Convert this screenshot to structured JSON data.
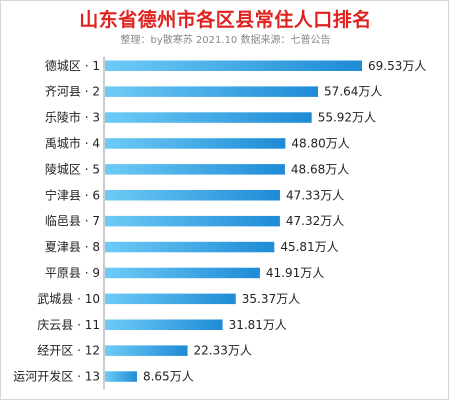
{
  "title": "山东省德州市各区县常住人口排名",
  "subtitle": "整理：by散寒苏   2021.10   数据来源：七普公告",
  "colors": {
    "title": "#e0221f",
    "bar_light": "#6ecbf6",
    "bar_dark": "#1e8bd6",
    "axis": "#9a9a9a"
  },
  "chart_data": {
    "type": "bar",
    "orientation": "horizontal",
    "title": "山东省德州市各区县常住人口排名",
    "subtitle": "整理：by散寒苏   2021.10   数据来源：七普公告",
    "unit": "万人",
    "categories": [
      "德城区 · 1",
      "齐河县 · 2",
      "乐陵市 · 3",
      "禹城市 · 4",
      "陵城区 · 5",
      "宁津县 · 6",
      "临邑县 · 7",
      "夏津县 · 8",
      "平原县 · 9",
      "武城县 · 10",
      "庆云县 · 11",
      "经开区 · 12",
      "运河开发区 · 13"
    ],
    "values": [
      69.53,
      57.64,
      55.92,
      48.8,
      48.68,
      47.33,
      47.32,
      45.81,
      41.91,
      35.37,
      31.81,
      22.33,
      8.65
    ],
    "value_labels": [
      "69.53万人",
      "57.64万人",
      "55.92万人",
      "48.80万人",
      "48.68万人",
      "47.33万人",
      "47.32万人",
      "45.81万人",
      "41.91万人",
      "35.37万人",
      "31.81万人",
      "22.33万人",
      "8.65万人"
    ],
    "xlim": [
      0,
      69.53
    ],
    "grid": false,
    "legend": "none"
  }
}
